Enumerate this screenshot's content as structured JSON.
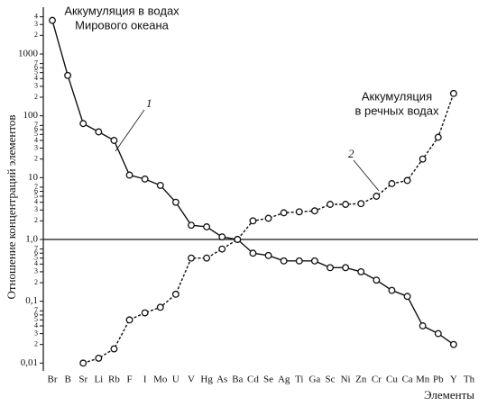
{
  "chart_data": {
    "type": "line",
    "log_y": true,
    "ylabel": "Отношение концентраций элементов",
    "xlabel": "Элементы",
    "annotations": [
      {
        "lines": [
          "Аккумуляция в водах",
          "Мирового океана"
        ]
      },
      {
        "lines": [
          "Аккумуляция",
          "в речных водах"
        ]
      }
    ],
    "categories": [
      "Br",
      "B",
      "Sr",
      "Li",
      "Rb",
      "F",
      "I",
      "Mo",
      "U",
      "V",
      "Hg",
      "As",
      "Ba",
      "Cd",
      "Se",
      "Ag",
      "Ti",
      "Ga",
      "Sc",
      "Ni",
      "Zn",
      "Cr",
      "Cu",
      "Ca",
      "Mn",
      "Pb",
      "Y",
      "Th"
    ],
    "series": [
      {
        "name": "1",
        "color": "#111111",
        "dashed": false,
        "values": [
          3500,
          450,
          75,
          55,
          40,
          11,
          9.5,
          7.5,
          4,
          1.7,
          1.6,
          1.1,
          1.0,
          0.6,
          0.55,
          0.45,
          0.45,
          0.45,
          0.35,
          0.35,
          0.3,
          0.22,
          0.15,
          0.12,
          0.04,
          0.03,
          0.02,
          null
        ]
      },
      {
        "name": "2",
        "color": "#111111",
        "dashed": true,
        "values": [
          null,
          null,
          0.01,
          0.012,
          0.017,
          0.05,
          0.065,
          0.08,
          0.13,
          0.5,
          0.5,
          0.7,
          1.0,
          2,
          2.2,
          2.7,
          2.8,
          2.9,
          3.7,
          3.7,
          3.8,
          5,
          8,
          9,
          20,
          45,
          230,
          null
        ]
      }
    ],
    "hline": 1,
    "ylim": [
      0.008,
      5000
    ],
    "yticks": [
      {
        "value": 0.01,
        "label": "0,01"
      },
      {
        "value": 0.02,
        "label": "2"
      },
      {
        "value": 0.03,
        "label": "3"
      },
      {
        "value": 0.04,
        "label": "4"
      },
      {
        "value": 0.05,
        "label": "5"
      },
      {
        "value": 0.06,
        "label": "6"
      },
      {
        "value": 0.07,
        "label": "7"
      },
      {
        "value": 0.1,
        "label": "0,1"
      },
      {
        "value": 0.2,
        "label": "2"
      },
      {
        "value": 0.3,
        "label": "3"
      },
      {
        "value": 0.4,
        "label": "4"
      },
      {
        "value": 0.5,
        "label": "5"
      },
      {
        "value": 0.6,
        "label": "6"
      },
      {
        "value": 0.7,
        "label": "7"
      },
      {
        "value": 1,
        "label": "1,0"
      },
      {
        "value": 2,
        "label": "2"
      },
      {
        "value": 3,
        "label": "3"
      },
      {
        "value": 4,
        "label": "4"
      },
      {
        "value": 5,
        "label": "5"
      },
      {
        "value": 6,
        "label": "6"
      },
      {
        "value": 7,
        "label": "7"
      },
      10,
      {
        "value": 20,
        "label": "2"
      },
      {
        "value": 30,
        "label": "3"
      },
      {
        "value": 40,
        "label": "4"
      },
      {
        "value": 50,
        "label": "5"
      },
      {
        "value": 60,
        "label": "6"
      },
      {
        "value": 70,
        "label": "7"
      },
      100,
      {
        "value": 200,
        "label": "2"
      },
      {
        "value": 300,
        "label": "3"
      },
      {
        "value": 400,
        "label": "4"
      },
      {
        "value": 500,
        "label": "5"
      },
      {
        "value": 600,
        "label": "6"
      },
      {
        "value": 700,
        "label": "7"
      },
      1000,
      {
        "value": 2000,
        "label": "2"
      },
      {
        "value": 3000,
        "label": "3"
      },
      {
        "value": 4000,
        "label": "4"
      }
    ]
  }
}
